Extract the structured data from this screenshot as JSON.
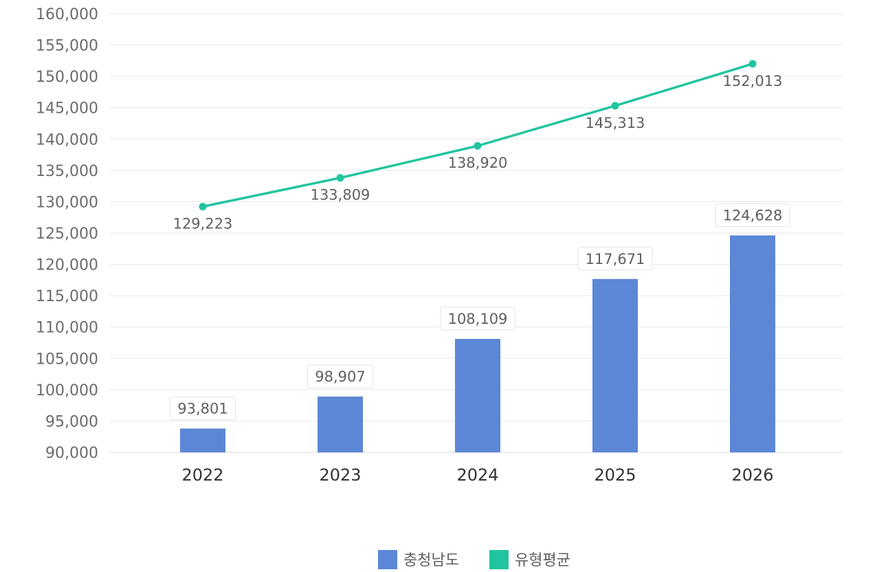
{
  "chart_data": {
    "type": "bar",
    "categories": [
      "2022",
      "2023",
      "2024",
      "2025",
      "2026"
    ],
    "series": [
      {
        "name": "충청남도",
        "type": "bar",
        "color": "#5b87d6",
        "values": [
          93801,
          98907,
          108109,
          117671,
          124628
        ]
      },
      {
        "name": "유형평균",
        "type": "line",
        "color": "#22c4a0",
        "values": [
          129223,
          133809,
          138920,
          145313,
          152013
        ]
      }
    ],
    "ylim": [
      90000,
      160000
    ],
    "yticks": [
      90000,
      95000,
      100000,
      105000,
      110000,
      115000,
      120000,
      125000,
      130000,
      135000,
      140000,
      145000,
      150000,
      155000,
      160000
    ],
    "grid": true,
    "legend": "bottom-center",
    "title": "",
    "xlabel": "",
    "ylabel": ""
  }
}
